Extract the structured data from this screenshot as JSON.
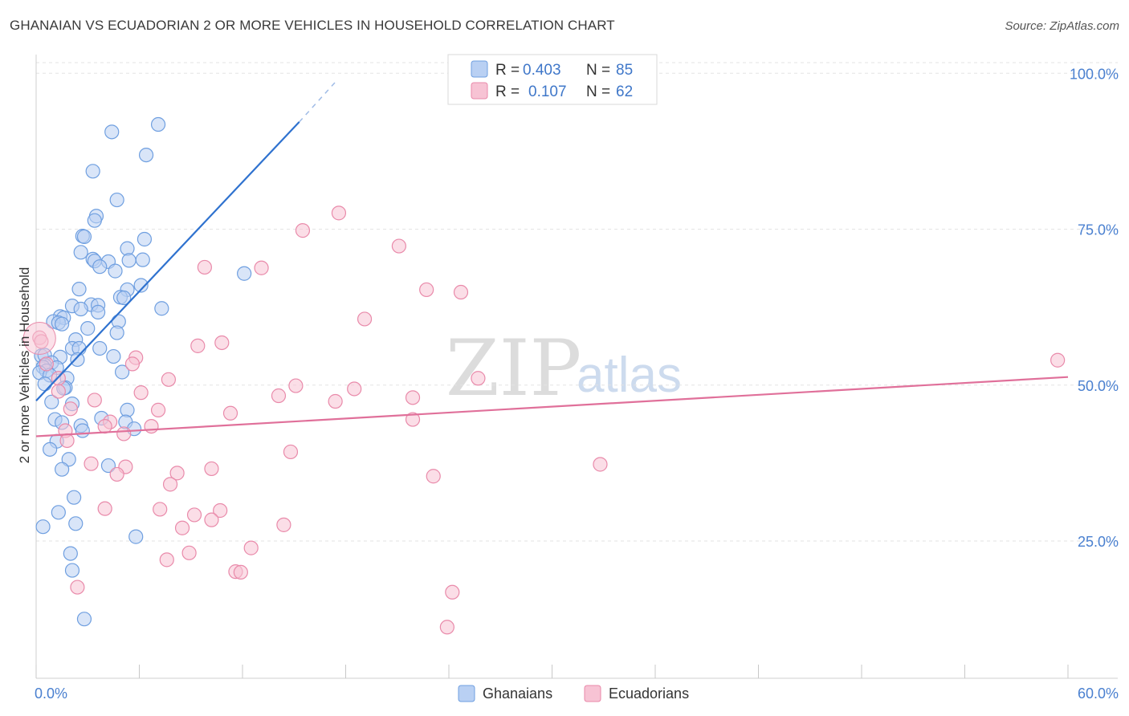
{
  "title": "GHANAIAN VS ECUADORIAN 2 OR MORE VEHICLES IN HOUSEHOLD CORRELATION CHART",
  "source": "Source: ZipAtlas.com",
  "watermark": {
    "zip": "ZIP",
    "atlas": "atlas"
  },
  "chart_data": {
    "type": "scatter",
    "xlabel": "",
    "ylabel": "2 or more Vehicles in Household",
    "xlim": [
      0,
      60
    ],
    "ylim": [
      3,
      103
    ],
    "x_tick_labels": [
      {
        "value": 0,
        "label": "0.0%"
      },
      {
        "value": 60,
        "label": "60.0%"
      }
    ],
    "y_tick_labels": [
      {
        "value": 25,
        "label": "25.0%"
      },
      {
        "value": 50,
        "label": "50.0%"
      },
      {
        "value": 75,
        "label": "75.0%"
      },
      {
        "value": 100,
        "label": "100.0%"
      }
    ],
    "legend": {
      "entries": [
        {
          "r_label": "R =",
          "r_value": "0.403",
          "n_label": "N =",
          "n_value": "85"
        },
        {
          "r_label": "R =",
          "r_value": "0.107",
          "n_label": "N =",
          "n_value": "62"
        }
      ]
    },
    "series": [
      {
        "name": "Ghanaians",
        "color": "#6f9fe0",
        "fill": "#b9d0f3",
        "trend": {
          "x0": 0,
          "y0": 47.5,
          "x1": 15.3,
          "y1": 92.2,
          "dash_x1": 17.5,
          "dash_y1": 98.9
        },
        "points": [
          [
            7.1,
            91.8
          ],
          [
            4.4,
            90.6
          ],
          [
            6.4,
            86.9
          ],
          [
            3.3,
            84.3
          ],
          [
            4.7,
            79.7
          ],
          [
            3.5,
            77.1
          ],
          [
            3.4,
            76.4
          ],
          [
            2.7,
            73.9
          ],
          [
            2.8,
            73.8
          ],
          [
            6.3,
            73.4
          ],
          [
            5.3,
            71.9
          ],
          [
            2.6,
            71.3
          ],
          [
            3.3,
            70.2
          ],
          [
            3.4,
            69.9
          ],
          [
            4.2,
            69.8
          ],
          [
            5.4,
            70.0
          ],
          [
            6.2,
            70.1
          ],
          [
            3.7,
            69.0
          ],
          [
            4.6,
            68.3
          ],
          [
            12.1,
            67.9
          ],
          [
            6.1,
            66.0
          ],
          [
            2.5,
            65.4
          ],
          [
            5.3,
            65.3
          ],
          [
            4.9,
            64.1
          ],
          [
            5.1,
            64.0
          ],
          [
            2.1,
            62.7
          ],
          [
            3.2,
            62.9
          ],
          [
            3.6,
            62.8
          ],
          [
            7.3,
            62.3
          ],
          [
            2.6,
            62.2
          ],
          [
            3.6,
            61.7
          ],
          [
            1.4,
            61.0
          ],
          [
            1.6,
            60.8
          ],
          [
            1.0,
            60.2
          ],
          [
            1.3,
            60.0
          ],
          [
            4.8,
            60.2
          ],
          [
            1.5,
            59.8
          ],
          [
            3.0,
            59.1
          ],
          [
            4.7,
            58.4
          ],
          [
            2.3,
            57.3
          ],
          [
            2.1,
            55.9
          ],
          [
            2.5,
            55.9
          ],
          [
            3.7,
            55.9
          ],
          [
            0.3,
            54.7
          ],
          [
            0.5,
            54.8
          ],
          [
            4.5,
            54.6
          ],
          [
            1.4,
            54.5
          ],
          [
            2.4,
            54.1
          ],
          [
            0.9,
            53.6
          ],
          [
            0.5,
            53.2
          ],
          [
            0.4,
            52.9
          ],
          [
            1.2,
            52.8
          ],
          [
            0.6,
            52.3
          ],
          [
            0.2,
            52.0
          ],
          [
            0.8,
            51.6
          ],
          [
            5.0,
            52.1
          ],
          [
            1.8,
            51.1
          ],
          [
            0.5,
            50.2
          ],
          [
            1.7,
            49.6
          ],
          [
            1.6,
            49.5
          ],
          [
            0.9,
            47.3
          ],
          [
            2.1,
            47.0
          ],
          [
            5.3,
            46.0
          ],
          [
            1.1,
            44.5
          ],
          [
            3.8,
            44.7
          ],
          [
            1.5,
            44.0
          ],
          [
            5.2,
            44.1
          ],
          [
            2.6,
            43.5
          ],
          [
            5.7,
            43.0
          ],
          [
            2.7,
            42.7
          ],
          [
            1.2,
            41.0
          ],
          [
            0.8,
            39.7
          ],
          [
            1.9,
            38.1
          ],
          [
            4.2,
            37.1
          ],
          [
            1.5,
            36.5
          ],
          [
            2.2,
            32.0
          ],
          [
            1.3,
            29.6
          ],
          [
            2.3,
            27.8
          ],
          [
            0.4,
            27.3
          ],
          [
            5.8,
            25.7
          ],
          [
            2.0,
            23.0
          ],
          [
            2.1,
            20.3
          ],
          [
            2.8,
            12.5
          ]
        ]
      },
      {
        "name": "Ecuadorians",
        "color": "#e98aaa",
        "fill": "#f7c3d4",
        "trend": {
          "x0": 0,
          "y0": 41.8,
          "x1": 60,
          "y1": 51.3
        },
        "points": [
          [
            17.6,
            77.6
          ],
          [
            15.5,
            74.8
          ],
          [
            21.1,
            72.3
          ],
          [
            9.8,
            68.9
          ],
          [
            13.1,
            68.8
          ],
          [
            22.7,
            65.3
          ],
          [
            24.7,
            64.9
          ],
          [
            19.1,
            60.6
          ],
          [
            0.2,
            57.6
          ],
          [
            0.3,
            57.0
          ],
          [
            10.8,
            56.8
          ],
          [
            9.4,
            56.3
          ],
          [
            5.8,
            54.4
          ],
          [
            5.6,
            53.4
          ],
          [
            0.6,
            53.4
          ],
          [
            1.3,
            51.1
          ],
          [
            7.7,
            50.9
          ],
          [
            25.7,
            51.1
          ],
          [
            15.1,
            49.9
          ],
          [
            18.5,
            49.4
          ],
          [
            1.3,
            49.0
          ],
          [
            6.1,
            48.8
          ],
          [
            14.1,
            48.3
          ],
          [
            21.9,
            48.0
          ],
          [
            17.4,
            47.4
          ],
          [
            3.4,
            47.6
          ],
          [
            2.0,
            46.2
          ],
          [
            7.1,
            46.0
          ],
          [
            11.3,
            45.5
          ],
          [
            4.3,
            44.1
          ],
          [
            21.9,
            44.5
          ],
          [
            6.7,
            43.4
          ],
          [
            4.0,
            43.4
          ],
          [
            1.7,
            42.7
          ],
          [
            5.1,
            42.2
          ],
          [
            1.8,
            41.1
          ],
          [
            14.8,
            39.3
          ],
          [
            32.8,
            37.3
          ],
          [
            3.2,
            37.4
          ],
          [
            5.2,
            36.9
          ],
          [
            10.2,
            36.6
          ],
          [
            8.2,
            35.9
          ],
          [
            4.7,
            35.7
          ],
          [
            23.1,
            35.4
          ],
          [
            7.8,
            34.1
          ],
          [
            4.0,
            30.2
          ],
          [
            7.2,
            30.1
          ],
          [
            10.7,
            29.9
          ],
          [
            9.2,
            29.2
          ],
          [
            10.2,
            28.4
          ],
          [
            14.4,
            27.6
          ],
          [
            8.5,
            27.1
          ],
          [
            12.5,
            23.9
          ],
          [
            8.9,
            23.1
          ],
          [
            7.6,
            22.0
          ],
          [
            11.6,
            20.1
          ],
          [
            11.9,
            20.0
          ],
          [
            2.4,
            17.6
          ],
          [
            24.2,
            16.8
          ],
          [
            23.9,
            11.2
          ],
          [
            59.4,
            54.0
          ]
        ]
      }
    ]
  },
  "bottom_legend": [
    {
      "label": "Ghanaians"
    },
    {
      "label": "Ecuadorians"
    }
  ],
  "colors": {
    "blue_line": "#2f72cf",
    "pink_line": "#e0709a",
    "grid": "#e3e3e3",
    "axis_text": "#4a80d0"
  }
}
